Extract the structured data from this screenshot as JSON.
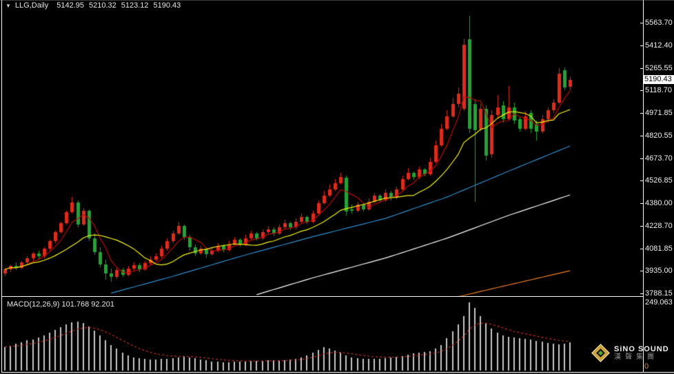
{
  "header": {
    "dropdown_arrow": "▼",
    "symbol": "LLG,Daily",
    "open": "5142.95",
    "high": "5210.32",
    "low": "5123.12",
    "close": "5190.43"
  },
  "price_axis": {
    "ticks": [
      "5563.70",
      "5412.40",
      "5265.55",
      "5118.70",
      "4971.85",
      "4820.55",
      "4673.70",
      "4526.85",
      "4380.00",
      "4228.70",
      "4081.85",
      "3935.00",
      "3788.15"
    ],
    "current_price": "5190.43"
  },
  "macd": {
    "label": "MACD(12,26,9) 101.768 92.201",
    "max_tick": "249.063",
    "zero_tick": "0"
  },
  "logo": {
    "name": "SiNO SOUND",
    "cn": "漢聲集團"
  },
  "colors": {
    "bull": "#e62819",
    "bear": "#1ea532",
    "ma_fast": "#c00a00",
    "ma_mid": "#f7f704",
    "ma_long": "#2f8fd0",
    "ma_longer": "#ffffff",
    "ma_longest": "#f08020",
    "histogram": "#c8c8c8",
    "signal": "#d03020",
    "axis_text": "#f0f0f0",
    "badge_bg": "#ffffff",
    "badge_text": "#000000"
  },
  "chart_data": [
    {
      "type": "candlestick",
      "title": "LLG Daily candlestick chart with moving averages",
      "ylim": [
        3788.15,
        5563.7
      ],
      "y_ticks": [
        5563.7,
        5412.4,
        5265.55,
        5118.7,
        4971.85,
        4820.55,
        4673.7,
        4526.85,
        4380.0,
        4228.7,
        4081.85,
        3935.0,
        3788.15
      ],
      "last_bar": {
        "open": 5142.95,
        "high": 5210.32,
        "low": 5123.12,
        "close": 5190.43
      },
      "ohlc": [
        [
          3920,
          3955,
          3900,
          3945
        ],
        [
          3945,
          3980,
          3930,
          3970
        ],
        [
          3970,
          3990,
          3940,
          3955
        ],
        [
          3955,
          4000,
          3945,
          3990
        ],
        [
          3990,
          4030,
          3975,
          4020
        ],
        [
          4020,
          4060,
          4000,
          4050
        ],
        [
          4050,
          4070,
          4015,
          4030
        ],
        [
          4030,
          4090,
          4020,
          4080
        ],
        [
          4080,
          4140,
          4070,
          4130
        ],
        [
          4130,
          4200,
          4120,
          4190
        ],
        [
          4190,
          4260,
          4180,
          4250
        ],
        [
          4250,
          4330,
          4240,
          4320
        ],
        [
          4320,
          4420,
          4310,
          4385
        ],
        [
          4385,
          4400,
          4220,
          4240
        ],
        [
          4240,
          4350,
          4230,
          4330
        ],
        [
          4330,
          4340,
          4130,
          4150
        ],
        [
          4150,
          4180,
          4040,
          4060
        ],
        [
          4060,
          4090,
          3960,
          3980
        ],
        [
          3980,
          4010,
          3880,
          3920
        ],
        [
          3920,
          3950,
          3865,
          3895
        ],
        [
          3895,
          3960,
          3885,
          3940
        ],
        [
          3940,
          3955,
          3895,
          3910
        ],
        [
          3910,
          3970,
          3900,
          3950
        ],
        [
          3950,
          3990,
          3935,
          3975
        ],
        [
          3975,
          3985,
          3930,
          3945
        ],
        [
          3945,
          4000,
          3935,
          3985
        ],
        [
          3985,
          4030,
          3975,
          4010
        ],
        [
          4010,
          4050,
          4000,
          4030
        ],
        [
          4030,
          4100,
          4020,
          4080
        ],
        [
          4080,
          4150,
          4070,
          4130
        ],
        [
          4130,
          4200,
          4120,
          4180
        ],
        [
          4180,
          4260,
          4170,
          4230
        ],
        [
          4230,
          4240,
          4140,
          4160
        ],
        [
          4160,
          4170,
          4070,
          4090
        ],
        [
          4090,
          4110,
          4030,
          4050
        ],
        [
          4050,
          4100,
          4040,
          4080
        ],
        [
          4080,
          4090,
          4025,
          4045
        ],
        [
          4045,
          4085,
          4035,
          4070
        ],
        [
          4070,
          4120,
          4060,
          4100
        ],
        [
          4100,
          4110,
          4060,
          4075
        ],
        [
          4075,
          4130,
          4065,
          4110
        ],
        [
          4110,
          4160,
          4100,
          4140
        ],
        [
          4140,
          4150,
          4095,
          4110
        ],
        [
          4110,
          4170,
          4100,
          4150
        ],
        [
          4150,
          4200,
          4140,
          4180
        ],
        [
          4180,
          4190,
          4135,
          4150
        ],
        [
          4150,
          4210,
          4140,
          4190
        ],
        [
          4190,
          4230,
          4180,
          4210
        ],
        [
          4210,
          4220,
          4165,
          4180
        ],
        [
          4180,
          4240,
          4170,
          4220
        ],
        [
          4220,
          4270,
          4210,
          4250
        ],
        [
          4250,
          4260,
          4205,
          4220
        ],
        [
          4220,
          4280,
          4210,
          4260
        ],
        [
          4260,
          4310,
          4250,
          4290
        ],
        [
          4290,
          4300,
          4245,
          4260
        ],
        [
          4260,
          4330,
          4250,
          4310
        ],
        [
          4310,
          4400,
          4300,
          4380
        ],
        [
          4380,
          4460,
          4370,
          4430
        ],
        [
          4430,
          4500,
          4420,
          4470
        ],
        [
          4470,
          4540,
          4460,
          4510
        ],
        [
          4510,
          4580,
          4500,
          4550
        ],
        [
          4545,
          4560,
          4300,
          4325
        ],
        [
          4340,
          4370,
          4310,
          4330
        ],
        [
          4330,
          4390,
          4320,
          4370
        ],
        [
          4370,
          4380,
          4325,
          4340
        ],
        [
          4340,
          4410,
          4330,
          4390
        ],
        [
          4390,
          4450,
          4380,
          4430
        ],
        [
          4430,
          4440,
          4385,
          4400
        ],
        [
          4400,
          4470,
          4390,
          4450
        ],
        [
          4450,
          4460,
          4400,
          4415
        ],
        [
          4415,
          4490,
          4405,
          4470
        ],
        [
          4470,
          4560,
          4460,
          4540
        ],
        [
          4540,
          4610,
          4530,
          4580
        ],
        [
          4580,
          4590,
          4535,
          4550
        ],
        [
          4550,
          4620,
          4540,
          4600
        ],
        [
          4600,
          4610,
          4555,
          4570
        ],
        [
          4570,
          4680,
          4560,
          4650
        ],
        [
          4650,
          4790,
          4640,
          4760
        ],
        [
          4760,
          4900,
          4750,
          4870
        ],
        [
          4870,
          4990,
          4860,
          4950
        ],
        [
          4950,
          5070,
          4940,
          5030
        ],
        [
          5030,
          5140,
          5010,
          5100
        ],
        [
          5000,
          5460,
          4985,
          5420
        ],
        [
          5455,
          5609,
          4840,
          4870
        ],
        [
          5030,
          5060,
          4390,
          4860
        ],
        [
          4870,
          5030,
          4850,
          5000
        ],
        [
          5000,
          5020,
          4660,
          4690
        ],
        [
          4700,
          4990,
          4680,
          4960
        ],
        [
          4960,
          5090,
          4940,
          5010
        ],
        [
          5020,
          5050,
          4910,
          4930
        ],
        [
          4930,
          5150,
          4920,
          5010
        ],
        [
          5010,
          5040,
          4900,
          4920
        ],
        [
          4930,
          4950,
          4850,
          4870
        ],
        [
          4870,
          4980,
          4860,
          4950
        ],
        [
          4970,
          4990,
          4840,
          4870
        ],
        [
          4900,
          4920,
          4790,
          4850
        ],
        [
          4850,
          4960,
          4835,
          4930
        ],
        [
          4930,
          5010,
          4910,
          4990
        ],
        [
          4990,
          5060,
          4970,
          5040
        ],
        [
          5040,
          5265,
          5030,
          5230
        ],
        [
          5250,
          5270,
          5120,
          5140
        ],
        [
          5142.95,
          5210.32,
          5123.12,
          5190.43
        ]
      ],
      "overlays": [
        {
          "name": "ma-fast",
          "type": "sma",
          "period": 5,
          "color_key": "ma_fast"
        },
        {
          "name": "ma-mid",
          "type": "sma",
          "period": 13,
          "color_key": "ma_mid"
        },
        {
          "name": "ma-long",
          "type": "anchors",
          "color_key": "ma_long",
          "points": [
            [
              19,
              3790
            ],
            [
              30,
              3900
            ],
            [
              42,
              4030
            ],
            [
              55,
              4160
            ],
            [
              68,
              4280
            ],
            [
              79,
              4420
            ],
            [
              90,
              4590
            ],
            [
              101,
              4755
            ]
          ]
        },
        {
          "name": "ma-longer",
          "type": "anchors",
          "color_key": "ma_longer",
          "points": [
            [
              45,
              3780
            ],
            [
              55,
              3890
            ],
            [
              68,
              4020
            ],
            [
              79,
              4150
            ],
            [
              90,
              4300
            ],
            [
              101,
              4434
            ]
          ]
        },
        {
          "name": "ma-longest",
          "type": "anchors",
          "color_key": "ma_longest",
          "points": [
            [
              81,
              3766
            ],
            [
              85,
              3801
            ],
            [
              93,
              3869
            ],
            [
              101,
              3937
            ]
          ]
        }
      ]
    },
    {
      "type": "bar",
      "title": "MACD(12,26,9) histogram with signal line",
      "ylim": [
        0,
        249.063
      ],
      "macd_value": 101.768,
      "signal_value": 92.201,
      "signal": {
        "type": "ema",
        "period": 9
      },
      "values": [
        85,
        90,
        95,
        100,
        108,
        112,
        118,
        125,
        135,
        145,
        155,
        165,
        172,
        176,
        170,
        158,
        142,
        125,
        108,
        92,
        78,
        65,
        55,
        48,
        44,
        42,
        40,
        40,
        41,
        43,
        45,
        48,
        50,
        48,
        44,
        40,
        36,
        33,
        31,
        30,
        30,
        31,
        32,
        33,
        34,
        34,
        35,
        36,
        36,
        37,
        38,
        40,
        43,
        47,
        55,
        65,
        75,
        85,
        80,
        72,
        64,
        55,
        48,
        45,
        43,
        42,
        42,
        43,
        45,
        47,
        50,
        53,
        57,
        61,
        64,
        66,
        68,
        78,
        92,
        115,
        140,
        165,
        195,
        245,
        225,
        195,
        170,
        150,
        135,
        125,
        120,
        118,
        116,
        114,
        111,
        107,
        103,
        99,
        96,
        94,
        97,
        101.768
      ]
    }
  ]
}
